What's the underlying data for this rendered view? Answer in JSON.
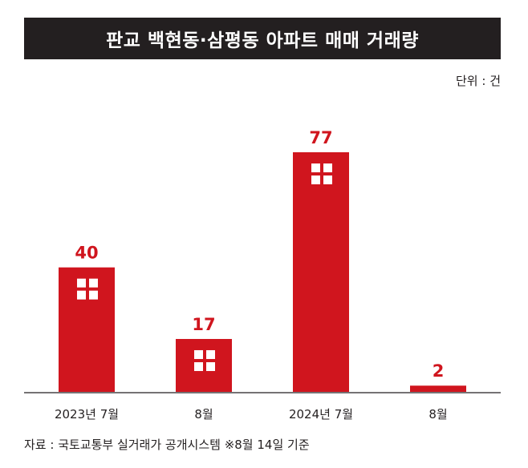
{
  "title": "판교 백현동·삼평동 아파트 매매 거래량",
  "unit_label": "단위 : 건",
  "source": "자료 : 국토교통부 실거래가 공개시스템 ※8월 14일 기준",
  "colors": {
    "bar": "#d0151e",
    "title_bg": "#231f20",
    "text": "#231f20",
    "axis": "#231f20"
  },
  "chart_data": {
    "type": "bar",
    "categories": [
      "2023년 7월",
      "8월",
      "2024년 7월",
      "8월"
    ],
    "values": [
      40,
      17,
      77,
      2
    ],
    "ylim": [
      0,
      77
    ],
    "grid": false,
    "legend": "none"
  }
}
